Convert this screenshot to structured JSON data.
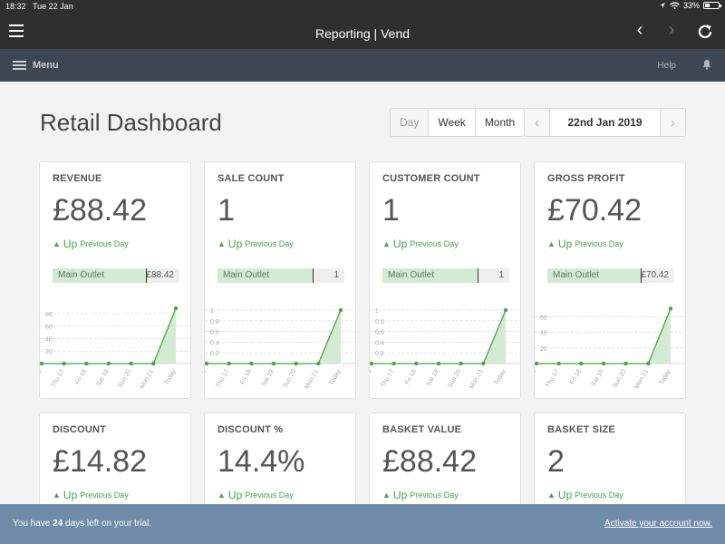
{
  "status_bar": {
    "time": "18:32",
    "date": "Tue 22 Jan",
    "battery": "33%",
    "battery_level": 0.33
  },
  "browser": {
    "title": "Reporting | Vend",
    "menu_icon": "hamburger-icon",
    "back_icon": "chevron-left-icon",
    "forward_icon": "chevron-right-icon",
    "reload_icon": "reload-icon"
  },
  "app_nav": {
    "menu_label": "Menu",
    "help_label": "Help",
    "bell_icon": "bell-icon"
  },
  "page": {
    "title": "Retail Dashboard",
    "periods": [
      "Day",
      "Week",
      "Month"
    ],
    "selected_period": "Day",
    "date": "22nd Jan 2019"
  },
  "colors": {
    "accent_green": "#4aa34a",
    "trial_banner": "#6f8ca8",
    "app_nav": "#3c4751"
  },
  "chart_x_labels": [
    "Wed 16",
    "Thu 17",
    "Fri 18",
    "Sat 19",
    "Sun 20",
    "Mon 21",
    "Today"
  ],
  "cards": [
    {
      "label": "REVENUE",
      "value": "£88.42",
      "trend": "Up",
      "trend_note": "Previous Day",
      "outlet_name": "Main Outlet",
      "outlet_value": "£88.42",
      "outlet_share": 0.74,
      "chart_data": {
        "type": "area",
        "x": [
          "Wed 16",
          "Thu 17",
          "Fri 18",
          "Sat 19",
          "Sun 20",
          "Mon 21",
          "Today"
        ],
        "values": [
          0,
          0,
          0,
          0,
          0,
          0,
          88.42
        ],
        "yticks": [
          20,
          40,
          60,
          80
        ],
        "ylim": [
          0,
          90
        ]
      }
    },
    {
      "label": "SALE COUNT",
      "value": "1",
      "trend": "Up",
      "trend_note": "Previous Day",
      "outlet_name": "Main Outlet",
      "outlet_value": "1",
      "outlet_share": 0.76,
      "chart_data": {
        "type": "area",
        "x": [
          "Wed 16",
          "Thu 17",
          "Fri 18",
          "Sat 19",
          "Sun 20",
          "Mon 21",
          "Today"
        ],
        "values": [
          0,
          0,
          0,
          0,
          0,
          0,
          1
        ],
        "yticks": [
          0.2,
          0.4,
          0.6,
          0.8,
          1
        ],
        "ylim": [
          0,
          1.05
        ]
      }
    },
    {
      "label": "CUSTOMER COUNT",
      "value": "1",
      "trend": "Up",
      "trend_note": "Previous Day",
      "outlet_name": "Main Outlet",
      "outlet_value": "1",
      "outlet_share": 0.76,
      "chart_data": {
        "type": "area",
        "x": [
          "Wed 16",
          "Thu 17",
          "Fri 18",
          "Sat 19",
          "Sun 20",
          "Mon 21",
          "Today"
        ],
        "values": [
          0,
          0,
          0,
          0,
          0,
          0,
          1
        ],
        "yticks": [
          0.2,
          0.4,
          0.6,
          0.8,
          1
        ],
        "ylim": [
          0,
          1.05
        ]
      }
    },
    {
      "label": "GROSS PROFIT",
      "value": "£70.42",
      "trend": "Up",
      "trend_note": "Previous Day",
      "outlet_name": "Main Outlet",
      "outlet_value": "£70.42",
      "outlet_share": 0.74,
      "chart_data": {
        "type": "area",
        "x": [
          "Wed 16",
          "Thu 17",
          "Fri 18",
          "Sat 19",
          "Sun 20",
          "Mon 21",
          "Today"
        ],
        "values": [
          0,
          0,
          0,
          0,
          0,
          0,
          70.42
        ],
        "yticks": [
          20,
          40,
          60
        ],
        "ylim": [
          0,
          72
        ]
      }
    },
    {
      "label": "DISCOUNT",
      "value": "£14.82",
      "trend": "Up",
      "trend_note": "Previous Day"
    },
    {
      "label": "DISCOUNT %",
      "value": "14.4%",
      "trend": "Up",
      "trend_note": "Previous Day"
    },
    {
      "label": "BASKET VALUE",
      "value": "£88.42",
      "trend": "Up",
      "trend_note": "Previous Day"
    },
    {
      "label": "BASKET SIZE",
      "value": "2",
      "trend": "Up",
      "trend_note": "Previous Day"
    }
  ],
  "trial": {
    "prefix": "You have ",
    "days": "24",
    "suffix": " days left on your trial.",
    "activate_label": "Activate your account now."
  }
}
